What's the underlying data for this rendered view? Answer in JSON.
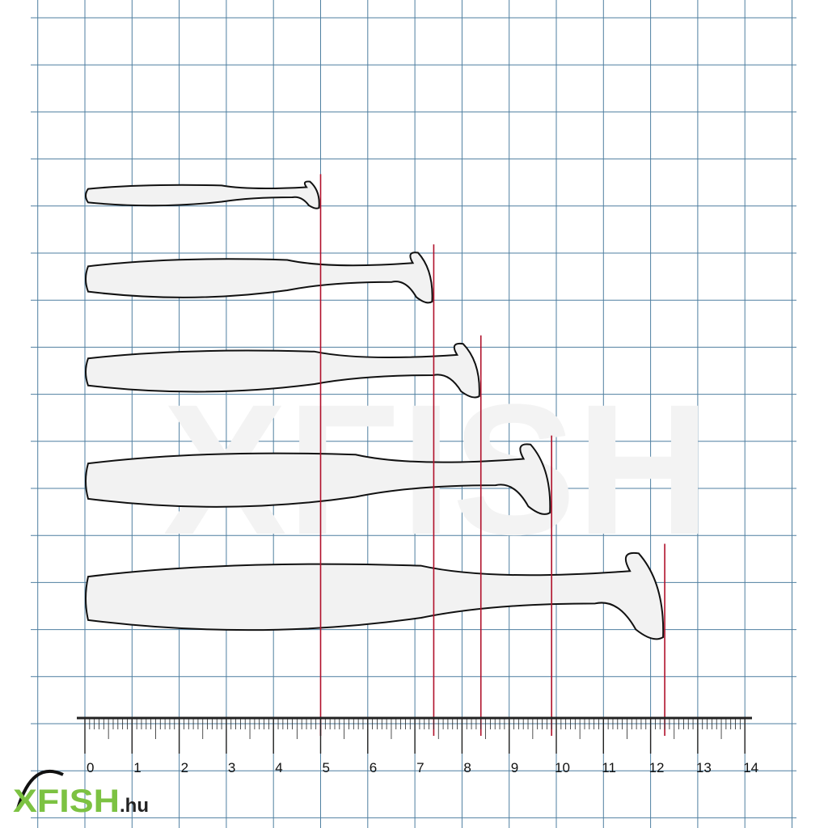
{
  "ruler": {
    "unit": "cm",
    "labels": [
      "0",
      "1",
      "2",
      "3",
      "4",
      "5",
      "6",
      "7",
      "8",
      "9",
      "10",
      "11",
      "12",
      "13",
      "14"
    ],
    "range": [
      0,
      14
    ]
  },
  "lures": [
    {
      "length_cm": 5.0
    },
    {
      "length_cm": 7.4
    },
    {
      "length_cm": 8.4
    },
    {
      "length_cm": 9.9
    },
    {
      "length_cm": 12.3
    }
  ],
  "colors": {
    "grid": "#4f7fa0",
    "marker": "#b0102a",
    "logo_green": "#7cc242",
    "lure_fill": "#f2f2f2"
  },
  "logo": {
    "brand": "XFISH",
    "suffix": ".hu"
  },
  "watermark": {
    "text": "XFISH"
  }
}
